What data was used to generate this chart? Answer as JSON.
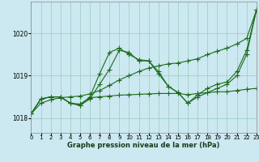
{
  "xlabel": "Graphe pression niveau de la mer (hPa)",
  "bg_color": "#cce8f0",
  "grid_color": "#99ccbb",
  "line_color": "#1a6b1a",
  "xlim": [
    0,
    23
  ],
  "ylim": [
    1017.65,
    1020.75
  ],
  "yticks": [
    1018,
    1019,
    1020
  ],
  "xticks": [
    0,
    1,
    2,
    3,
    4,
    5,
    6,
    7,
    8,
    9,
    10,
    11,
    12,
    13,
    14,
    15,
    16,
    17,
    18,
    19,
    20,
    21,
    22,
    23
  ],
  "hours": [
    0,
    1,
    2,
    3,
    4,
    5,
    6,
    7,
    8,
    9,
    10,
    11,
    12,
    13,
    14,
    15,
    16,
    17,
    18,
    19,
    20,
    21,
    22,
    23
  ],
  "line_jagged_high": [
    1018.1,
    1018.45,
    1018.5,
    1018.5,
    1018.35,
    1018.3,
    1018.5,
    1019.05,
    1019.55,
    1019.65,
    1019.5,
    1019.38,
    1019.35,
    1019.05,
    1018.75,
    1018.6,
    1018.35,
    1018.55,
    1018.7,
    1018.8,
    1018.85,
    1019.1,
    1019.6,
    1020.55
  ],
  "line_jagged_low": [
    1018.1,
    1018.45,
    1018.5,
    1018.5,
    1018.35,
    1018.3,
    1018.45,
    1018.8,
    1019.15,
    1019.6,
    1019.55,
    1019.35,
    1019.35,
    1019.1,
    1018.75,
    1018.6,
    1018.35,
    1018.5,
    1018.6,
    1018.7,
    1018.8,
    1019.0,
    1019.5,
    1020.55
  ],
  "line_smooth_diag": [
    1018.1,
    1018.35,
    1018.43,
    1018.48,
    1018.5,
    1018.52,
    1018.57,
    1018.65,
    1018.77,
    1018.9,
    1019.0,
    1019.1,
    1019.18,
    1019.23,
    1019.28,
    1019.3,
    1019.35,
    1019.4,
    1019.5,
    1019.58,
    1019.65,
    1019.75,
    1019.88,
    1020.55
  ],
  "line_flat": [
    1018.1,
    1018.45,
    1018.5,
    1018.5,
    1018.35,
    1018.33,
    1018.48,
    1018.5,
    1018.52,
    1018.54,
    1018.55,
    1018.56,
    1018.57,
    1018.58,
    1018.58,
    1018.58,
    1018.55,
    1018.58,
    1018.6,
    1018.62,
    1018.62,
    1018.65,
    1018.68,
    1018.7
  ]
}
